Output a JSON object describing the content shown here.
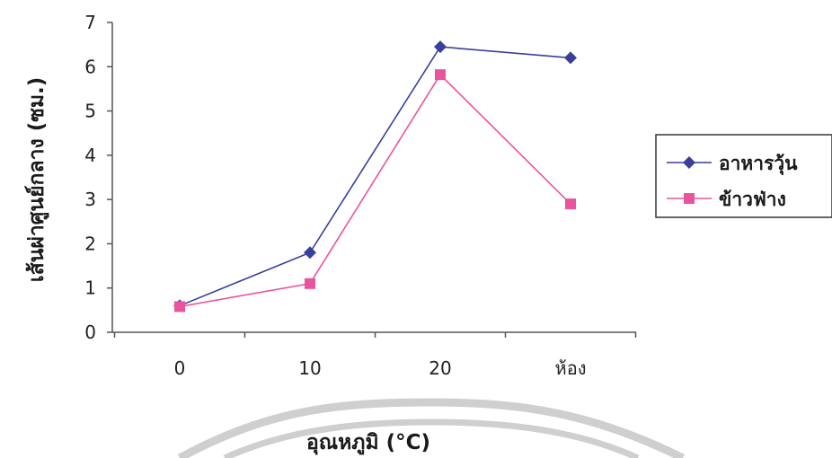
{
  "chart_data": {
    "type": "line",
    "categories": [
      "0",
      "10",
      "20",
      "ห้อง"
    ],
    "series": [
      {
        "name": "อาหารวุ้น",
        "values": [
          0.6,
          1.8,
          6.45,
          6.2
        ],
        "color": "#3a3f9c",
        "marker": "diamond"
      },
      {
        "name": "ข้าวฟ่าง",
        "values": [
          0.58,
          1.1,
          5.82,
          2.9
        ],
        "color": "#e8559c",
        "marker": "square"
      }
    ],
    "ylim": [
      0,
      7
    ],
    "yticks": [
      "0",
      "1",
      "2",
      "3",
      "4",
      "5",
      "6",
      "7"
    ],
    "xlabel": "อุณหภูมิ (°C)",
    "ylabel": "เส้นผ่าศูนย์กลาง (ซม.)",
    "grid": false,
    "legend_position": "right"
  },
  "colors": {
    "axis": "#555555",
    "watermark": "#cfcfcf"
  }
}
